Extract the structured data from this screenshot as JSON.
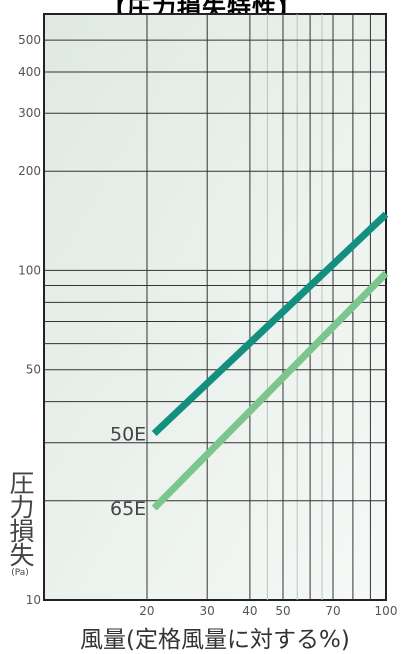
{
  "chart_data": {
    "type": "line",
    "title": "【圧力損失特性】",
    "xlabel": "風量(定格風量に対する%)",
    "ylabel": "圧力損失",
    "yunit": "(Pa)",
    "xscale": "log",
    "yscale": "log",
    "xlim": [
      10,
      100
    ],
    "ylim": [
      10,
      600
    ],
    "xticks": [
      20,
      30,
      40,
      50,
      70,
      100
    ],
    "yticks": [
      10,
      50,
      100,
      200,
      300,
      400,
      500
    ],
    "grid": true,
    "series": [
      {
        "name": "50E",
        "color": "#138f80",
        "x": [
          21,
          100
        ],
        "y": [
          32,
          148
        ]
      },
      {
        "name": "65E",
        "color": "#7cc58d",
        "x": [
          21,
          100
        ],
        "y": [
          19,
          98
        ]
      }
    ]
  }
}
